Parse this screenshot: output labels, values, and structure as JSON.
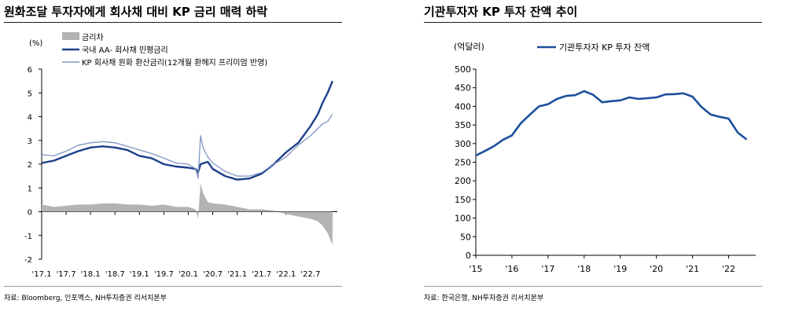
{
  "left_panel": {
    "title": "원화조달 투자자에게 회사채 대비 KP 금리 매력 하락",
    "source": "자료: Bloomberg, 인포맥스, NH투자증권 리서치본부"
  },
  "right_panel": {
    "title": "기관투자자 KP 투자 잔액 추이",
    "source": "자료: 한국은행, NH투자증권 리서치본부"
  },
  "chart_data": [
    {
      "type": "line",
      "unit_label": "(%)",
      "ylim": [
        -2,
        6
      ],
      "yticks": [
        "6",
        "5",
        "4",
        "3",
        "2",
        "1",
        "0",
        "-1",
        "-2"
      ],
      "xtick_labels": [
        "'17.1",
        "'17.7",
        "'18.1",
        "'18.7",
        "'19.1",
        "'19.7",
        "'20.1",
        "'20.7",
        "'21.1",
        "'21.7",
        "'22.1",
        "'22.7"
      ],
      "legend": [
        "금리차",
        "국내 AA- 회사채 민평금리",
        "KP 회사채 원화 환산금리(12개월 환헤지 프리미엄 반영)"
      ],
      "legend_position": "top-left",
      "series": [
        {
          "name": "금리차",
          "style": "area",
          "color": "#b3b3b3",
          "x": [
            2017.0,
            2017.25,
            2017.5,
            2017.75,
            2018.0,
            2018.25,
            2018.5,
            2018.75,
            2019.0,
            2019.25,
            2019.5,
            2019.75,
            2020.0,
            2020.15,
            2020.2,
            2020.25,
            2020.3,
            2020.4,
            2020.5,
            2020.75,
            2021.0,
            2021.25,
            2021.5,
            2021.75,
            2022.0,
            2022.25,
            2022.5,
            2022.65,
            2022.75,
            2022.85,
            2022.95
          ],
          "values": [
            0.3,
            0.2,
            0.25,
            0.3,
            0.3,
            0.35,
            0.35,
            0.3,
            0.3,
            0.25,
            0.3,
            0.2,
            0.2,
            0.1,
            -0.3,
            1.2,
            0.8,
            0.4,
            0.35,
            0.3,
            0.2,
            0.1,
            0.1,
            0.05,
            -0.1,
            -0.2,
            -0.3,
            -0.4,
            -0.6,
            -0.9,
            -1.4
          ]
        },
        {
          "name": "국내 AA- 회사채 민평금리",
          "style": "line",
          "color": "#1c3f8c",
          "x": [
            2017.0,
            2017.25,
            2017.5,
            2017.75,
            2018.0,
            2018.25,
            2018.5,
            2018.75,
            2019.0,
            2019.25,
            2019.5,
            2019.75,
            2020.0,
            2020.15,
            2020.2,
            2020.25,
            2020.4,
            2020.5,
            2020.75,
            2021.0,
            2021.25,
            2021.5,
            2021.75,
            2022.0,
            2022.25,
            2022.5,
            2022.65,
            2022.75,
            2022.85,
            2022.95
          ],
          "values": [
            2.05,
            2.15,
            2.35,
            2.55,
            2.7,
            2.75,
            2.7,
            2.6,
            2.35,
            2.25,
            2.0,
            1.9,
            1.85,
            1.8,
            1.65,
            2.0,
            2.1,
            1.8,
            1.5,
            1.35,
            1.4,
            1.6,
            2.0,
            2.5,
            2.9,
            3.6,
            4.1,
            4.6,
            5.0,
            5.5
          ]
        },
        {
          "name": "KP 회사채 원화 환산금리(12개월 환헤지 프리미엄 반영)",
          "style": "line",
          "color": "#8096c4",
          "x": [
            2017.0,
            2017.25,
            2017.5,
            2017.75,
            2018.0,
            2018.25,
            2018.5,
            2018.75,
            2019.0,
            2019.25,
            2019.5,
            2019.75,
            2020.0,
            2020.15,
            2020.2,
            2020.25,
            2020.3,
            2020.4,
            2020.5,
            2020.75,
            2021.0,
            2021.25,
            2021.5,
            2021.75,
            2022.0,
            2022.25,
            2022.5,
            2022.65,
            2022.75,
            2022.85,
            2022.95
          ],
          "values": [
            2.4,
            2.35,
            2.55,
            2.8,
            2.9,
            2.95,
            2.9,
            2.75,
            2.6,
            2.45,
            2.25,
            2.05,
            2.0,
            1.8,
            1.4,
            3.2,
            2.7,
            2.3,
            2.05,
            1.7,
            1.5,
            1.5,
            1.65,
            2.0,
            2.3,
            2.8,
            3.2,
            3.5,
            3.7,
            3.8,
            4.1
          ]
        }
      ]
    },
    {
      "type": "line",
      "unit_label": "(억달러)",
      "ylim": [
        0,
        500
      ],
      "yticks": [
        "500",
        "450",
        "400",
        "350",
        "300",
        "250",
        "200",
        "150",
        "100",
        "50",
        "0"
      ],
      "xtick_labels": [
        "'15",
        "'16",
        "'17",
        "'18",
        "'19",
        "'20",
        "'21",
        "'22"
      ],
      "legend": [
        "기관투자자 KP 투자 잔액"
      ],
      "legend_position": "top",
      "series": [
        {
          "name": "기관투자자 KP 투자 잔액",
          "color": "#1c4f9c",
          "x": [
            2015.0,
            2015.25,
            2015.5,
            2015.75,
            2016.0,
            2016.25,
            2016.5,
            2016.75,
            2017.0,
            2017.25,
            2017.5,
            2017.75,
            2018.0,
            2018.25,
            2018.5,
            2018.75,
            2019.0,
            2019.25,
            2019.5,
            2019.75,
            2020.0,
            2020.25,
            2020.5,
            2020.75,
            2021.0,
            2021.25,
            2021.5,
            2021.75,
            2022.0,
            2022.25,
            2022.5
          ],
          "values": [
            268,
            280,
            293,
            310,
            322,
            355,
            378,
            400,
            406,
            420,
            428,
            430,
            441,
            431,
            411,
            414,
            416,
            424,
            420,
            422,
            424,
            432,
            433,
            435,
            426,
            398,
            378,
            372,
            367,
            330,
            311
          ]
        }
      ]
    }
  ]
}
